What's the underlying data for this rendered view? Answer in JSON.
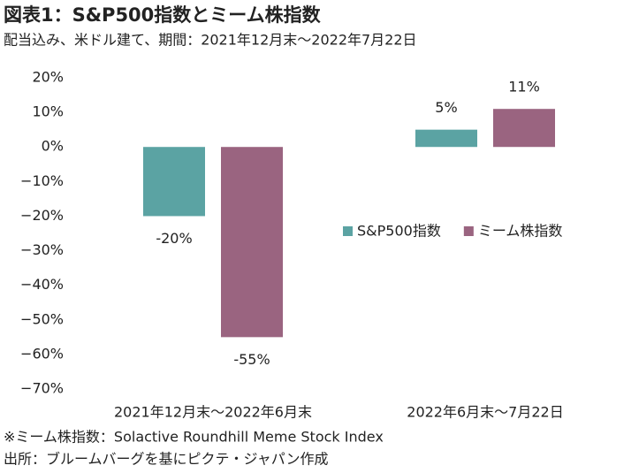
{
  "chart_data": {
    "type": "bar",
    "title": "図表1：S&P500指数とミーム株指数",
    "subtitle": "配当込み、米ドル建て、期間：2021年12月末～2022年7月22日",
    "categories": [
      "2021年12月末～2022年6月末",
      "2022年6月末～7月22日"
    ],
    "series": [
      {
        "name": "S&P500指数",
        "color": "#5ba3a3",
        "values": [
          -20,
          5
        ],
        "value_labels": [
          "-20%",
          "5%"
        ]
      },
      {
        "name": "ミーム株指数",
        "color": "#9a6480",
        "values": [
          -55,
          11
        ],
        "value_labels": [
          "-55%",
          "11%"
        ]
      }
    ],
    "ylim": [
      -70,
      20
    ],
    "yticks": [
      {
        "value": 20,
        "label": "20%"
      },
      {
        "value": 10,
        "label": "10%"
      },
      {
        "value": 0,
        "label": "0%"
      },
      {
        "value": -10,
        "label": "−10%"
      },
      {
        "value": -20,
        "label": "−20%"
      },
      {
        "value": -30,
        "label": "−30%"
      },
      {
        "value": -40,
        "label": "−40%"
      },
      {
        "value": -50,
        "label": "−50%"
      },
      {
        "value": -60,
        "label": "−60%"
      },
      {
        "value": -70,
        "label": "−70%"
      }
    ],
    "notes": [
      "※ミーム株指数：Solactive Roundhill Meme Stock Index",
      "出所：ブルームバーグを基にピクテ・ジャパン作成"
    ]
  }
}
